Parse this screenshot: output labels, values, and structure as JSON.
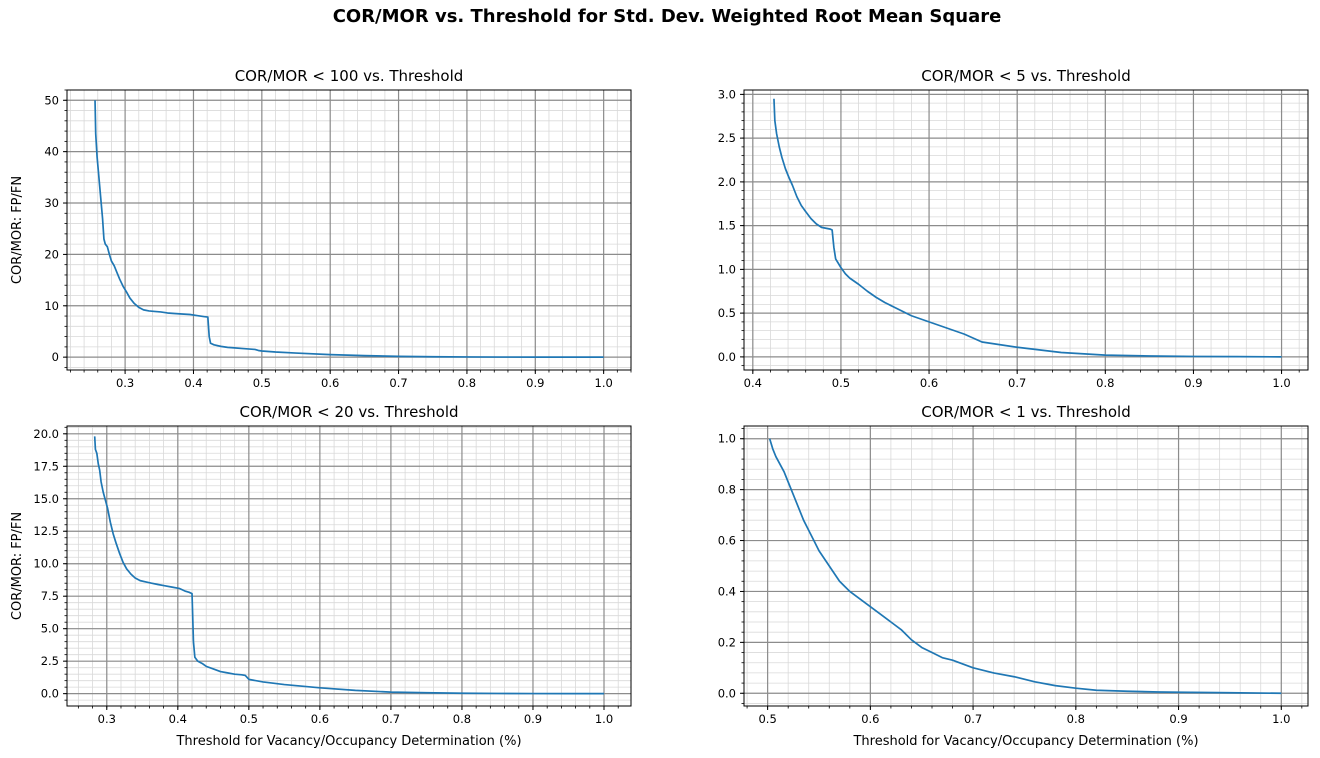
{
  "suptitle": "COR/MOR vs. Threshold for Std. Dev. Weighted Root Mean Square",
  "colors": {
    "line": "#1f77b4",
    "major_grid": "#8c8c8c",
    "minor_grid": "#d9d9d9",
    "axes": "#000000"
  },
  "chart_data": [
    {
      "type": "line",
      "title": "COR/MOR < 100 vs. Threshold",
      "xlabel": "",
      "ylabel": "COR/MOR: FP/FN",
      "xlim": [
        0.215,
        1.04
      ],
      "ylim": [
        -2.5,
        52
      ],
      "xticks": [
        0.3,
        0.4,
        0.5,
        0.6,
        0.7,
        0.8,
        0.9,
        1.0
      ],
      "xtick_labels": [
        "0.3",
        "0.4",
        "0.5",
        "0.6",
        "0.7",
        "0.8",
        "0.9",
        "1.0"
      ],
      "yticks": [
        0,
        10,
        20,
        30,
        40,
        50
      ],
      "ytick_labels": [
        "0",
        "10",
        "20",
        "30",
        "40",
        "50"
      ],
      "x_minor_step": 0.02,
      "y_minor_step": 2,
      "grid": true,
      "x": [
        0.256,
        0.257,
        0.259,
        0.261,
        0.263,
        0.265,
        0.267,
        0.269,
        0.271,
        0.274,
        0.277,
        0.28,
        0.284,
        0.288,
        0.292,
        0.297,
        0.302,
        0.307,
        0.313,
        0.32,
        0.327,
        0.335,
        0.343,
        0.352,
        0.362,
        0.372,
        0.383,
        0.395,
        0.405,
        0.415,
        0.421,
        0.423,
        0.425,
        0.43,
        0.44,
        0.45,
        0.46,
        0.47,
        0.48,
        0.49,
        0.495,
        0.5,
        0.52,
        0.55,
        0.6,
        0.65,
        0.7,
        0.75,
        0.8,
        0.85,
        0.9,
        0.95,
        1.0
      ],
      "y": [
        50,
        43.5,
        39,
        36,
        33,
        30,
        27,
        23,
        22,
        21.5,
        20,
        18.7,
        17.8,
        16.5,
        15.2,
        13.8,
        12.7,
        11.5,
        10.5,
        9.7,
        9.2,
        9.0,
        8.9,
        8.8,
        8.6,
        8.5,
        8.4,
        8.3,
        8.1,
        7.9,
        7.8,
        4.0,
        2.7,
        2.4,
        2.1,
        1.9,
        1.8,
        1.7,
        1.6,
        1.5,
        1.3,
        1.2,
        1.0,
        0.8,
        0.5,
        0.3,
        0.15,
        0.08,
        0.04,
        0.02,
        0.01,
        0.005,
        0.0
      ]
    },
    {
      "type": "line",
      "title": "COR/MOR < 5 vs. Threshold",
      "xlabel": "",
      "ylabel": "",
      "xlim": [
        0.39,
        1.03
      ],
      "ylim": [
        -0.15,
        3.05
      ],
      "xticks": [
        0.4,
        0.5,
        0.6,
        0.7,
        0.8,
        0.9,
        1.0
      ],
      "xtick_labels": [
        "0.4",
        "0.5",
        "0.6",
        "0.7",
        "0.8",
        "0.9",
        "1.0"
      ],
      "yticks": [
        0.0,
        0.5,
        1.0,
        1.5,
        2.0,
        2.5,
        3.0
      ],
      "ytick_labels": [
        "0.0",
        "0.5",
        "1.0",
        "1.5",
        "2.0",
        "2.5",
        "3.0"
      ],
      "x_minor_step": 0.02,
      "y_minor_step": 0.1,
      "grid": true,
      "x": [
        0.424,
        0.425,
        0.427,
        0.43,
        0.433,
        0.437,
        0.441,
        0.445,
        0.45,
        0.455,
        0.46,
        0.466,
        0.472,
        0.478,
        0.483,
        0.488,
        0.49,
        0.492,
        0.494,
        0.497,
        0.5,
        0.505,
        0.51,
        0.52,
        0.53,
        0.54,
        0.55,
        0.56,
        0.57,
        0.58,
        0.6,
        0.62,
        0.64,
        0.66,
        0.7,
        0.75,
        0.8,
        0.85,
        0.9,
        0.95,
        1.0
      ],
      "y": [
        2.95,
        2.7,
        2.55,
        2.4,
        2.28,
        2.15,
        2.05,
        1.96,
        1.83,
        1.73,
        1.66,
        1.58,
        1.52,
        1.48,
        1.47,
        1.46,
        1.45,
        1.25,
        1.12,
        1.07,
        1.02,
        0.95,
        0.9,
        0.83,
        0.75,
        0.68,
        0.62,
        0.57,
        0.52,
        0.47,
        0.4,
        0.33,
        0.26,
        0.17,
        0.11,
        0.05,
        0.02,
        0.01,
        0.005,
        0.003,
        0.0
      ]
    },
    {
      "type": "line",
      "title": "COR/MOR < 20 vs. Threshold",
      "xlabel": "Threshold for Vacancy/Occupancy Determination (%)",
      "ylabel": "COR/MOR: FP/FN",
      "xlim": [
        0.244,
        1.038
      ],
      "ylim": [
        -0.95,
        20.6
      ],
      "xticks": [
        0.3,
        0.4,
        0.5,
        0.6,
        0.7,
        0.8,
        0.9,
        1.0
      ],
      "xtick_labels": [
        "0.3",
        "0.4",
        "0.5",
        "0.6",
        "0.7",
        "0.8",
        "0.9",
        "1.0"
      ],
      "yticks": [
        0.0,
        2.5,
        5.0,
        7.5,
        10.0,
        12.5,
        15.0,
        17.5,
        20.0
      ],
      "ytick_labels": [
        "0.0",
        "2.5",
        "5.0",
        "7.5",
        "10.0",
        "12.5",
        "15.0",
        "17.5",
        "20.0"
      ],
      "x_minor_step": 0.02,
      "y_minor_step": 0.5,
      "grid": true,
      "x": [
        0.283,
        0.284,
        0.286,
        0.288,
        0.29,
        0.292,
        0.295,
        0.298,
        0.301,
        0.305,
        0.309,
        0.313,
        0.318,
        0.323,
        0.328,
        0.334,
        0.34,
        0.347,
        0.355,
        0.363,
        0.372,
        0.382,
        0.392,
        0.402,
        0.41,
        0.416,
        0.42,
        0.422,
        0.424,
        0.428,
        0.435,
        0.44,
        0.45,
        0.46,
        0.47,
        0.48,
        0.49,
        0.495,
        0.5,
        0.52,
        0.55,
        0.6,
        0.65,
        0.7,
        0.75,
        0.8,
        0.85,
        0.9,
        0.95,
        1.0
      ],
      "y": [
        19.8,
        18.8,
        18.5,
        17.7,
        17.2,
        16.3,
        15.5,
        14.9,
        14.3,
        13.2,
        12.3,
        11.6,
        10.8,
        10.1,
        9.6,
        9.2,
        8.9,
        8.7,
        8.6,
        8.5,
        8.4,
        8.3,
        8.2,
        8.1,
        7.9,
        7.8,
        7.7,
        4.0,
        2.8,
        2.5,
        2.3,
        2.1,
        1.9,
        1.7,
        1.6,
        1.5,
        1.45,
        1.4,
        1.1,
        0.9,
        0.7,
        0.45,
        0.25,
        0.12,
        0.07,
        0.03,
        0.015,
        0.007,
        0.003,
        0.0
      ]
    },
    {
      "type": "line",
      "title": "COR/MOR < 1 vs. Threshold",
      "xlabel": "Threshold for Vacancy/Occupancy Determination (%)",
      "ylabel": "",
      "xlim": [
        0.477,
        1.026
      ],
      "ylim": [
        -0.05,
        1.05
      ],
      "xticks": [
        0.5,
        0.6,
        0.7,
        0.8,
        0.9,
        1.0
      ],
      "xtick_labels": [
        "0.5",
        "0.6",
        "0.7",
        "0.8",
        "0.9",
        "1.0"
      ],
      "yticks": [
        0.0,
        0.2,
        0.4,
        0.6,
        0.8,
        1.0
      ],
      "ytick_labels": [
        "0.0",
        "0.2",
        "0.4",
        "0.6",
        "0.8",
        "1.0"
      ],
      "x_minor_step": 0.02,
      "y_minor_step": 0.04,
      "grid": true,
      "x": [
        0.502,
        0.505,
        0.508,
        0.512,
        0.516,
        0.52,
        0.525,
        0.53,
        0.535,
        0.54,
        0.545,
        0.55,
        0.555,
        0.56,
        0.565,
        0.57,
        0.575,
        0.58,
        0.59,
        0.6,
        0.61,
        0.62,
        0.63,
        0.64,
        0.65,
        0.66,
        0.67,
        0.68,
        0.7,
        0.72,
        0.74,
        0.76,
        0.78,
        0.8,
        0.82,
        0.85,
        0.88,
        0.9,
        0.95,
        1.0
      ],
      "y": [
        1.0,
        0.96,
        0.93,
        0.9,
        0.87,
        0.83,
        0.78,
        0.73,
        0.68,
        0.64,
        0.6,
        0.56,
        0.53,
        0.5,
        0.47,
        0.44,
        0.42,
        0.4,
        0.37,
        0.34,
        0.31,
        0.28,
        0.25,
        0.21,
        0.18,
        0.16,
        0.14,
        0.13,
        0.1,
        0.08,
        0.065,
        0.045,
        0.03,
        0.02,
        0.012,
        0.008,
        0.005,
        0.004,
        0.002,
        0.0
      ]
    }
  ]
}
